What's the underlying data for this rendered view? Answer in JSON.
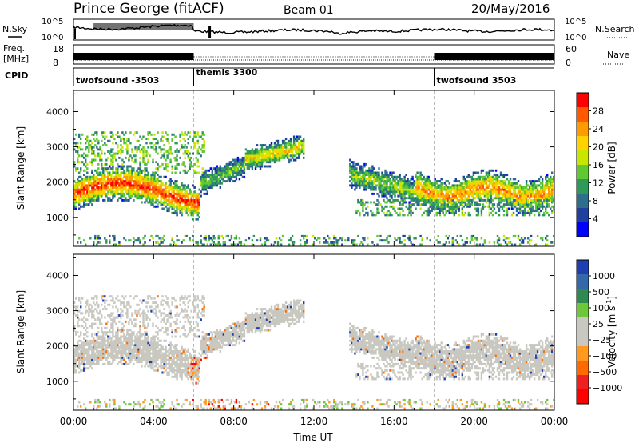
{
  "header": {
    "title": "Prince George (fitACF)",
    "beam": "Beam 01",
    "date": "20/May/2016"
  },
  "top_panels": {
    "nsky_label": "N.Sky",
    "nsky_ticks": [
      "10^5",
      "10^0"
    ],
    "nsearch_label": "N.Search",
    "freq_label_1": "Freq.",
    "freq_label_2": "[MHz]",
    "freq_ticks": [
      "18",
      "8"
    ],
    "nave_ticks": [
      "60",
      "0"
    ],
    "nave_label": "Nave",
    "cpid_label": "CPID",
    "cpid_segments": [
      {
        "label": "twofsound -3503",
        "start": 0,
        "end": 6
      },
      {
        "label": "themis 3300",
        "start": 6,
        "end": 18
      },
      {
        "label": "twofsound 3503",
        "start": 18,
        "end": 24
      }
    ]
  },
  "colorbars": {
    "power": {
      "label": "Power [dB]",
      "ticks": [
        "28",
        "24",
        "20",
        "16",
        "12",
        "8",
        "4"
      ],
      "colors": [
        "#ff0000",
        "#ff5a00",
        "#ff9a00",
        "#ffd200",
        "#c8e600",
        "#5fc832",
        "#2e9a5a",
        "#2e6e8c",
        "#2040a0",
        "#0000ff"
      ]
    },
    "velocity": {
      "label": "Velocity [m s",
      "label_exp": "-1",
      "label_close": "]",
      "ticks": [
        "1000",
        "500",
        "100",
        "25",
        "−25",
        "−100",
        "−500",
        "−1000"
      ],
      "colors": [
        "#1f3fb0",
        "#3568a8",
        "#2f8a52",
        "#6cc83a",
        "#c8c8c0",
        "#c8c8c0",
        "#ff9a1e",
        "#ff6a00",
        "#f02020",
        "#ff0000"
      ]
    }
  },
  "chart_data": [
    {
      "type": "heatmap",
      "title": "Power",
      "ylabel": "Slant Range [km]",
      "ylim": [
        180,
        4600
      ],
      "yticks": [
        "1000",
        "2000",
        "3000",
        "4000"
      ],
      "x_ticks": [
        "00:00",
        "04:00",
        "08:00",
        "12:00",
        "16:00",
        "20:00",
        "00:00"
      ],
      "xlim_hours": [
        0,
        24
      ],
      "color_range_db": [
        0,
        30
      ]
    },
    {
      "type": "heatmap",
      "title": "Velocity",
      "ylabel": "Slant Range [km]",
      "xlabel": "Time UT",
      "ylim": [
        180,
        4600
      ],
      "yticks": [
        "1000",
        "2000",
        "3000",
        "4000"
      ],
      "x_ticks": [
        "00:00",
        "04:00",
        "08:00",
        "12:00",
        "16:00",
        "20:00",
        "00:00"
      ],
      "xlim_hours": [
        0,
        24
      ],
      "color_range_ms": [
        -1000,
        1000
      ]
    }
  ]
}
